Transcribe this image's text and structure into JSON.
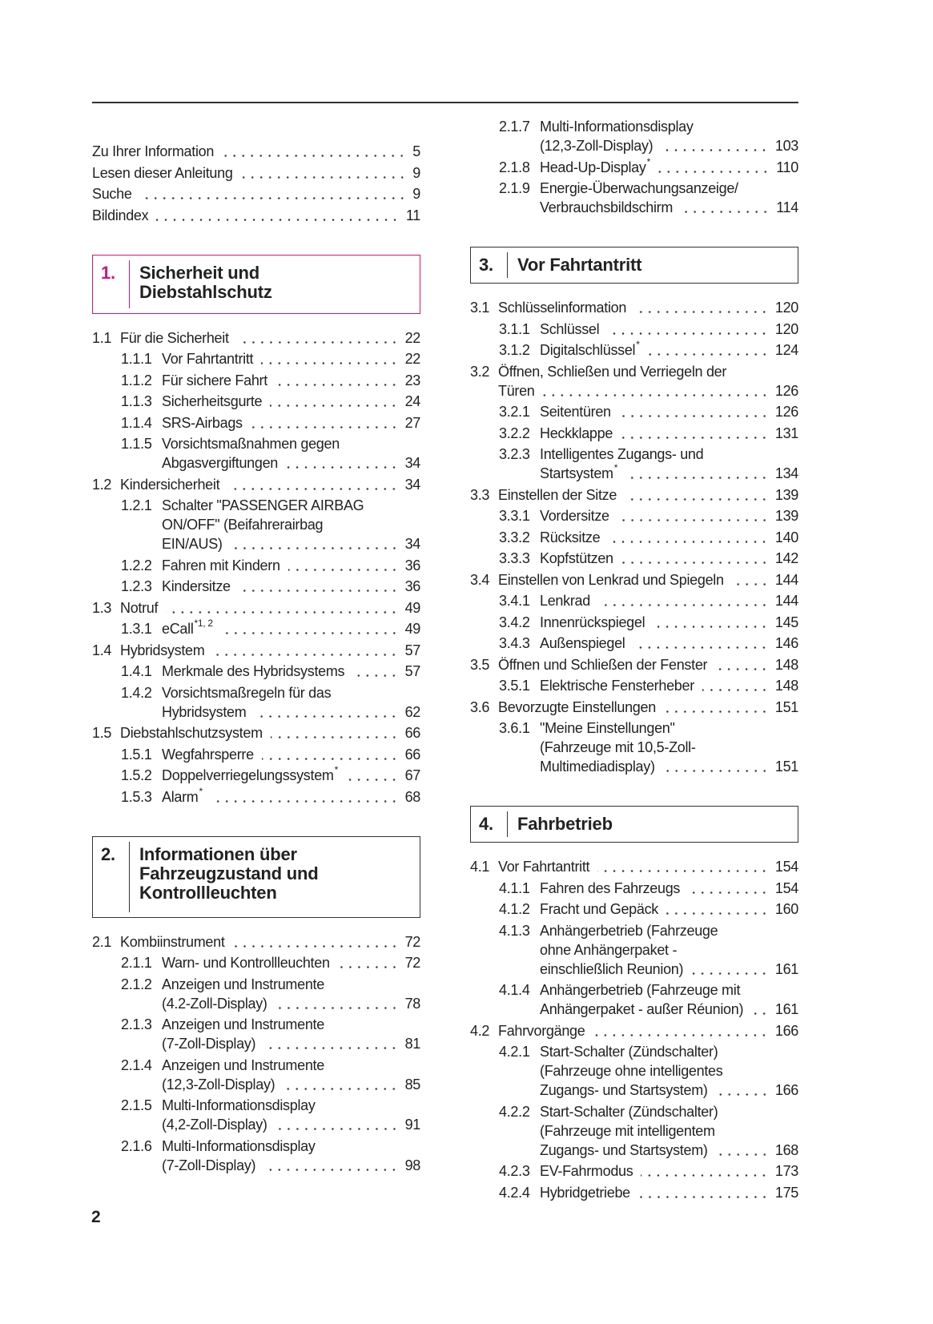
{
  "page_number": "2",
  "section_colors": {
    "highlight": "#d0177a",
    "default": "#333333"
  },
  "left": [
    {
      "text": [
        "Zu Ihrer Information"
      ],
      "page": 5
    },
    {
      "text": [
        "Lesen dieser Anleitung"
      ],
      "page": 9
    },
    {
      "text": [
        "Suche"
      ],
      "page": 9
    },
    {
      "text": [
        "Bildindex"
      ],
      "page": 11
    },
    {
      "heading_num": "1.",
      "heading": [
        "Sicherheit und",
        "Diebstahlschutz"
      ],
      "highlight": true
    },
    {
      "num": "1.1",
      "text": [
        "Für die Sicherheit"
      ],
      "page": 22
    },
    {
      "num": "1.1.1",
      "text": [
        "Vor Fahrtantritt"
      ],
      "page": 22
    },
    {
      "num": "1.1.2",
      "text": [
        "Für sichere Fahrt"
      ],
      "page": 23
    },
    {
      "num": "1.1.3",
      "text": [
        "Sicherheitsgurte"
      ],
      "page": 24
    },
    {
      "num": "1.1.4",
      "text": [
        "SRS-Airbags"
      ],
      "page": 27
    },
    {
      "num": "1.1.5",
      "text": [
        "Vorsichtsmaßnahmen gegen",
        "Abgasvergiftungen"
      ],
      "page": 34
    },
    {
      "num": "1.2",
      "text": [
        "Kindersicherheit"
      ],
      "page": 34
    },
    {
      "num": "1.2.1",
      "text": [
        "Schalter \"PASSENGER AIRBAG",
        "ON/OFF\" (Beifahrerairbag",
        "EIN/AUS)"
      ],
      "page": 34
    },
    {
      "num": "1.2.2",
      "text": [
        "Fahren mit Kindern"
      ],
      "page": 36
    },
    {
      "num": "1.2.3",
      "text": [
        "Kindersitze"
      ],
      "page": 36
    },
    {
      "num": "1.3",
      "text": [
        "Notruf"
      ],
      "page": 49
    },
    {
      "num": "1.3.1",
      "text": [
        "eCall"
      ],
      "sup": "*1, 2",
      "page": 49
    },
    {
      "num": "1.4",
      "text": [
        "Hybridsystem"
      ],
      "page": 57
    },
    {
      "num": "1.4.1",
      "text": [
        "Merkmale des Hybridsystems"
      ],
      "page": 57
    },
    {
      "num": "1.4.2",
      "text": [
        "Vorsichtsmaßregeln für das",
        "Hybridsystem"
      ],
      "page": 62
    },
    {
      "num": "1.5",
      "text": [
        "Diebstahlschutzsystem"
      ],
      "page": 66
    },
    {
      "num": "1.5.1",
      "text": [
        "Wegfahrsperre"
      ],
      "page": 66
    },
    {
      "num": "1.5.2",
      "text": [
        "Doppelverriegelungssystem"
      ],
      "sup": "*",
      "page": 67
    },
    {
      "num": "1.5.3",
      "text": [
        "Alarm"
      ],
      "sup": "*",
      "page": 68
    },
    {
      "heading_num": "2.",
      "heading": [
        "Informationen über",
        "Fahrzeugzustand und",
        "Kontrollleuchten"
      ]
    },
    {
      "num": "2.1",
      "text": [
        "Kombiinstrument"
      ],
      "page": 72
    },
    {
      "num": "2.1.1",
      "text": [
        "Warn- und Kontrollleuchten"
      ],
      "page": 72
    },
    {
      "num": "2.1.2",
      "text": [
        "Anzeigen und Instrumente",
        "(4.2-Zoll-Display)"
      ],
      "page": 78
    },
    {
      "num": "2.1.3",
      "text": [
        "Anzeigen und Instrumente",
        "(7-Zoll-Display)"
      ],
      "page": 81
    },
    {
      "num": "2.1.4",
      "text": [
        "Anzeigen und Instrumente",
        "(12,3-Zoll-Display)"
      ],
      "page": 85
    },
    {
      "num": "2.1.5",
      "text": [
        "Multi-Informationsdisplay",
        "(4,2-Zoll-Display)"
      ],
      "page": 91
    },
    {
      "num": "2.1.6",
      "text": [
        "Multi-Informationsdisplay",
        "(7-Zoll-Display)"
      ],
      "page": 98
    }
  ],
  "right": [
    {
      "num": "2.1.7",
      "text": [
        "Multi-Informationsdisplay",
        "(12,3-Zoll-Display)"
      ],
      "page": 103
    },
    {
      "num": "2.1.8",
      "text": [
        "Head-Up-Display"
      ],
      "sup": "*",
      "page": 110
    },
    {
      "num": "2.1.9",
      "text": [
        "Energie-Überwachungsanzeige/",
        "Verbrauchsbildschirm"
      ],
      "page": 114
    },
    {
      "heading_num": "3.",
      "heading": [
        "Vor Fahrtantritt"
      ]
    },
    {
      "num": "3.1",
      "text": [
        "Schlüsselinformation"
      ],
      "page": 120
    },
    {
      "num": "3.1.1",
      "text": [
        "Schlüssel"
      ],
      "page": 120
    },
    {
      "num": "3.1.2",
      "text": [
        "Digitalschlüssel"
      ],
      "sup": "*",
      "page": 124
    },
    {
      "num": "3.2",
      "text": [
        "Öffnen, Schließen und Verriegeln der",
        "Türen"
      ],
      "page": 126
    },
    {
      "num": "3.2.1",
      "text": [
        "Seitentüren"
      ],
      "page": 126
    },
    {
      "num": "3.2.2",
      "text": [
        "Heckklappe"
      ],
      "page": 131
    },
    {
      "num": "3.2.3",
      "text": [
        "Intelligentes Zugangs- und",
        "Startsystem"
      ],
      "sup": "*",
      "page": 134
    },
    {
      "num": "3.3",
      "text": [
        "Einstellen der Sitze"
      ],
      "page": 139
    },
    {
      "num": "3.3.1",
      "text": [
        "Vordersitze"
      ],
      "page": 139
    },
    {
      "num": "3.3.2",
      "text": [
        "Rücksitze"
      ],
      "page": 140
    },
    {
      "num": "3.3.3",
      "text": [
        "Kopfstützen"
      ],
      "page": 142
    },
    {
      "num": "3.4",
      "text": [
        "Einstellen von Lenkrad und Spiegeln"
      ],
      "page": 144
    },
    {
      "num": "3.4.1",
      "text": [
        "Lenkrad"
      ],
      "page": 144
    },
    {
      "num": "3.4.2",
      "text": [
        "Innenrückspiegel"
      ],
      "page": 145
    },
    {
      "num": "3.4.3",
      "text": [
        "Außenspiegel"
      ],
      "page": 146
    },
    {
      "num": "3.5",
      "text": [
        "Öffnen und Schließen der Fenster"
      ],
      "page": 148
    },
    {
      "num": "3.5.1",
      "text": [
        "Elektrische Fensterheber"
      ],
      "page": 148
    },
    {
      "num": "3.6",
      "text": [
        "Bevorzugte Einstellungen"
      ],
      "page": 151
    },
    {
      "num": "3.6.1",
      "text": [
        "\"Meine Einstellungen\"",
        "(Fahrzeuge mit 10,5-Zoll-",
        "Multimediadisplay)"
      ],
      "page": 151
    },
    {
      "heading_num": "4.",
      "heading": [
        "Fahrbetrieb"
      ]
    },
    {
      "num": "4.1",
      "text": [
        "Vor Fahrtantritt"
      ],
      "page": 154
    },
    {
      "num": "4.1.1",
      "text": [
        "Fahren des Fahrzeugs"
      ],
      "page": 154
    },
    {
      "num": "4.1.2",
      "text": [
        "Fracht und Gepäck"
      ],
      "page": 160
    },
    {
      "num": "4.1.3",
      "text": [
        "Anhängerbetrieb (Fahrzeuge",
        "ohne Anhängerpaket -",
        "einschließlich Reunion)"
      ],
      "page": 161
    },
    {
      "num": "4.1.4",
      "text": [
        "Anhängerbetrieb (Fahrzeuge mit",
        "Anhängerpaket - außer Réunion)"
      ],
      "page": 161
    },
    {
      "num": "4.2",
      "text": [
        "Fahrvorgänge"
      ],
      "page": 166
    },
    {
      "num": "4.2.1",
      "text": [
        "Start-Schalter (Zündschalter)",
        "(Fahrzeuge ohne intelligentes",
        "Zugangs- und Startsystem)"
      ],
      "page": 166
    },
    {
      "num": "4.2.2",
      "text": [
        "Start-Schalter (Zündschalter)",
        "(Fahrzeuge mit intelligentem",
        "Zugangs- und Startsystem)"
      ],
      "page": 168
    },
    {
      "num": "4.2.3",
      "text": [
        "EV-Fahrmodus"
      ],
      "page": 173
    },
    {
      "num": "4.2.4",
      "text": [
        "Hybridgetriebe"
      ],
      "page": 175
    }
  ]
}
